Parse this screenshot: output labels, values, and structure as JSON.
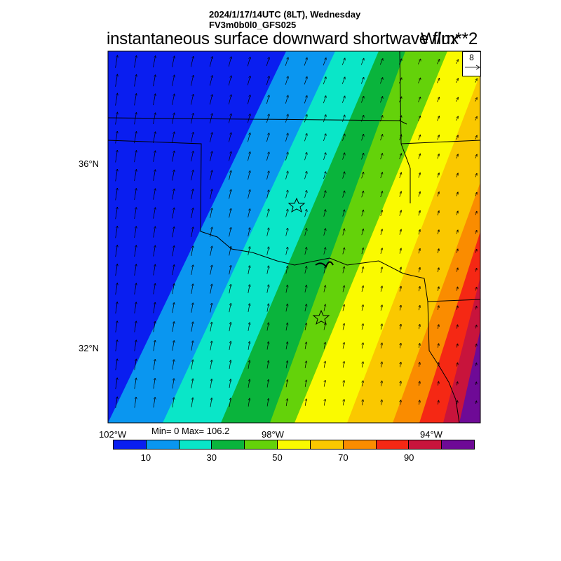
{
  "header": {
    "datetime": "2024/1/17/14UTC (8LT), Wednesday",
    "model": "FV3m0b0l0_GFS025",
    "variable": "instantaneous surface downward shortwave flux",
    "units": "W/m**2"
  },
  "map": {
    "lat_labels": [
      "36°N",
      "32°N"
    ],
    "lon_labels": [
      "102°W",
      "98°W",
      "94°W"
    ],
    "stats": "Min= 0 Max= 106.2",
    "reference_vector": "8"
  },
  "colorbar": {
    "colors": [
      "#0a1ef0",
      "#0a96f0",
      "#0ae6c8",
      "#0ab43c",
      "#64d20a",
      "#fafa00",
      "#fac800",
      "#fa8c00",
      "#f52814",
      "#c8143c",
      "#6e0a96"
    ],
    "labels": [
      "10",
      "30",
      "50",
      "70",
      "90"
    ]
  }
}
